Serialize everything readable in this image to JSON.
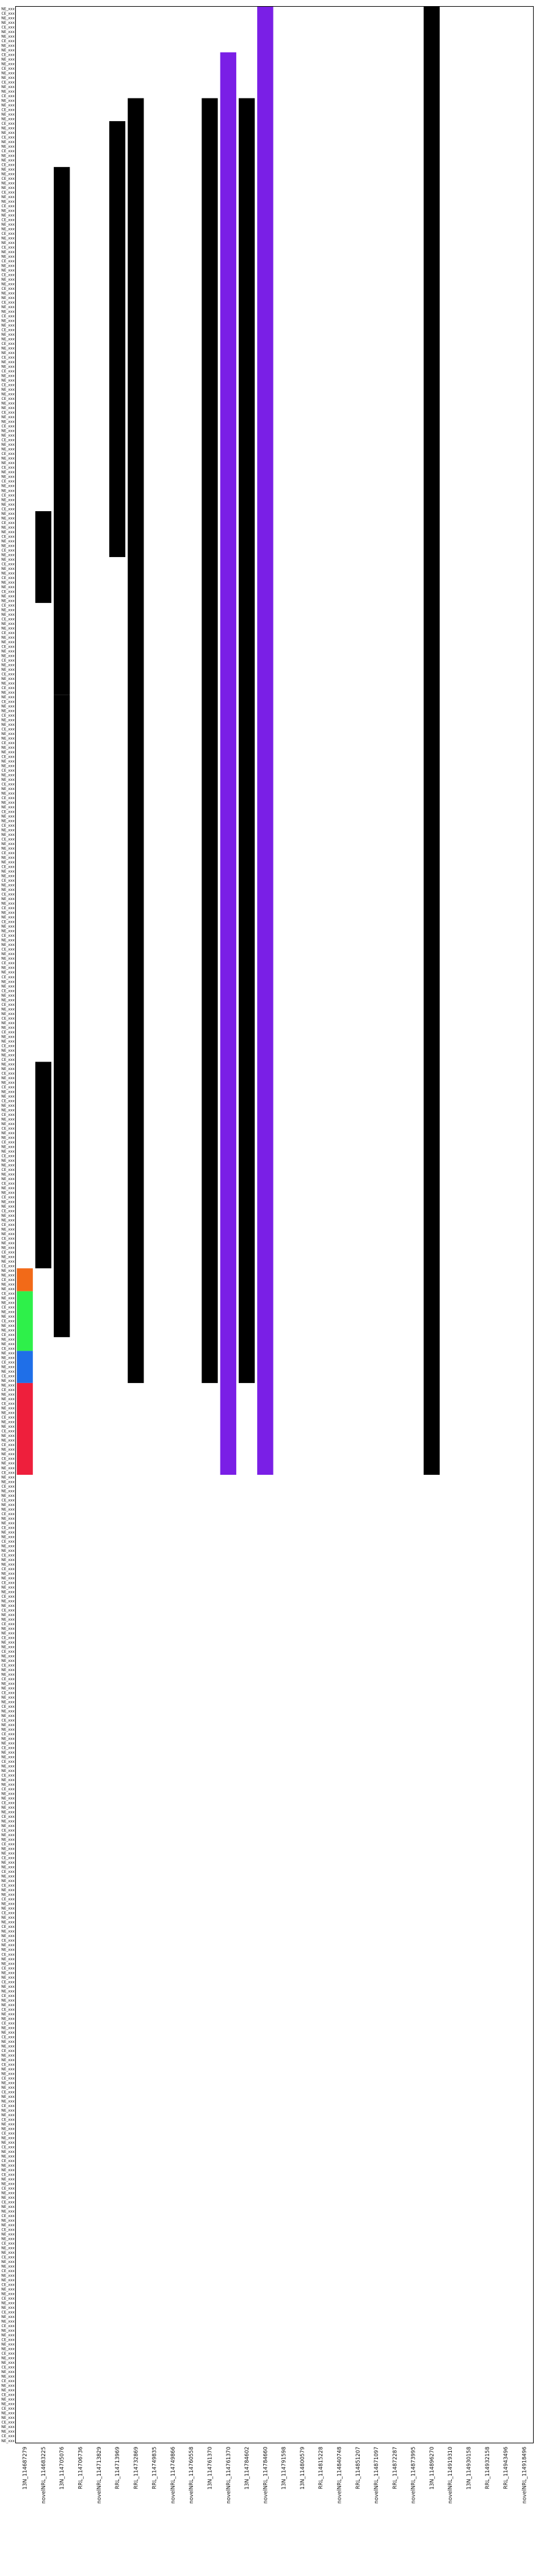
{
  "chart_data": {
    "type": "heatmap",
    "title": "",
    "xlabel": "",
    "ylabel": "",
    "grid": false,
    "legend": "none",
    "columns": [
      "13N_114687279",
      "novelNRL_114683225",
      "13N_114705076",
      "RRL_114706736",
      "novelNRL_114713829",
      "RRL_114713969",
      "RRL_114732869",
      "RRL_114749835",
      "novelNRL_114749866",
      "novelNRL_114760558",
      "13N_114761370",
      "novelNRL_114761370",
      "13N_114784602",
      "novelNRL_114784660",
      "13N_114791598",
      "13N_114800579",
      "RRL_114815228",
      "novelNRL_114840748",
      "RRL_114851207",
      "novelNRL_114871097",
      "RRL_114872287",
      "novelNRL_114873995",
      "13N_114896270",
      "novelNRL_114919310",
      "13N_114930158",
      "RRL_114932158",
      "RRL_114943496",
      "novelNRL_114918496"
    ],
    "row_count": 531,
    "row_label_prefixes": [
      "NE_xxx",
      "CE_xxx",
      "NE_xxx"
    ],
    "categories_colors": {
      "black": "#000000",
      "purple": "#7a1fe6",
      "red": "#ee1f3c",
      "orange": "#f26a18",
      "green": "#2ef04a",
      "blue": "#1f6fe8",
      "cyan": "#1ec8e6",
      "yellow": "#f2ee1c",
      "magenta": "#e61fe6",
      "azure": "#1e90ff",
      "navy": "#1a1ae8"
    },
    "column_colors": {
      "13N_114687279": "#ee1f3c",
      "novelNRL_114683225": "#000000",
      "13N_114705076": "#000000",
      "RRL_114706736": "#000000",
      "novelNRL_114713829": "#000000",
      "RRL_114713969": "#000000",
      "RRL_114732869": "#000000",
      "RRL_114749835": "#000000",
      "novelNRL_114749866": "#000000",
      "novelNRL_114760558": "#000000",
      "13N_114761370": "#000000",
      "novelNRL_114761370": "#000000",
      "13N_114784602": "#000000",
      "novelNRL_114784660": "#7a1fe6",
      "13N_114791598": "#000000",
      "13N_114800579": "#000000",
      "RRL_114815228": "#000000",
      "novelNRL_114840748": "#000000",
      "RRL_114851207": "#000000",
      "novelNRL_114871097": "#000000",
      "RRL_114872287": "#000000",
      "novelNRL_114873995": "#000000",
      "13N_114896270": "#000000",
      "novelNRL_114919310": "#000000",
      "13N_114930158": "#000000",
      "RRL_114932158": "#000000",
      "RRL_114943496": "#000000",
      "novelNRL_114918496": "#1e90ff"
    },
    "filled_ranges": [
      {
        "column": "13N_114687279",
        "from": 275,
        "to": 280,
        "color": "#f26a18"
      },
      {
        "column": "13N_114687279",
        "from": 280,
        "to": 293,
        "color": "#2ef04a"
      },
      {
        "column": "13N_114687279",
        "from": 293,
        "to": 300,
        "color": "#1f6fe8"
      },
      {
        "column": "13N_114687279",
        "from": 300,
        "to": 320,
        "color": "#ee1f3c"
      },
      {
        "column": "novelNRL_114683225",
        "from": 110,
        "to": 130,
        "color": "#000000"
      },
      {
        "column": "novelNRL_114683225",
        "from": 230,
        "to": 275,
        "color": "#000000"
      },
      {
        "column": "13N_114705076",
        "from": 35,
        "to": 150,
        "color": "#000000"
      },
      {
        "column": "13N_114705076",
        "from": 150,
        "to": 290,
        "color": "#000000"
      },
      {
        "column": "RRL_114713969",
        "from": 25,
        "to": 120,
        "color": "#000000"
      },
      {
        "column": "RRL_114732869",
        "from": 20,
        "to": 300,
        "color": "#000000"
      },
      {
        "column": "13N_114761370",
        "from": 20,
        "to": 300,
        "color": "#000000"
      },
      {
        "column": "novelNRL_114761370",
        "from": 10,
        "to": 320,
        "color": "#7a1fe6"
      },
      {
        "column": "13N_114784602",
        "from": 20,
        "to": 300,
        "color": "#000000"
      },
      {
        "column": "novelNRL_114784660",
        "from": 0,
        "to": 320,
        "color": "#7a1fe6"
      },
      {
        "column": "13N_114896270",
        "from": 0,
        "to": 320,
        "color": "#000000"
      }
    ]
  }
}
